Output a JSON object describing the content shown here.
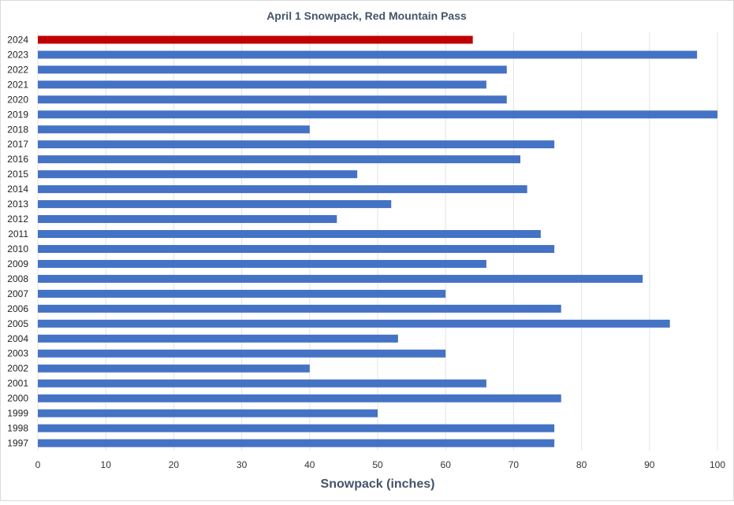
{
  "chart_data": {
    "type": "bar",
    "orientation": "horizontal",
    "title": "April 1 Snowpack, Red Mountain Pass",
    "xlabel": "Snowpack (inches)",
    "ylabel": "",
    "xlim": [
      0,
      100
    ],
    "xticks": [
      0,
      10,
      20,
      30,
      40,
      50,
      60,
      70,
      80,
      90,
      100
    ],
    "grid": true,
    "legend": "none",
    "categories": [
      "2024",
      "2023",
      "2022",
      "2021",
      "2020",
      "2019",
      "2018",
      "2017",
      "2016",
      "2015",
      "2014",
      "2013",
      "2012",
      "2011",
      "2010",
      "2009",
      "2008",
      "2007",
      "2006",
      "2005",
      "2004",
      "2003",
      "2002",
      "2001",
      "2000",
      "1999",
      "1998",
      "1997"
    ],
    "values": [
      64,
      97,
      69,
      66,
      69,
      100,
      40,
      76,
      71,
      47,
      72,
      52,
      44,
      74,
      76,
      66,
      89,
      60,
      77,
      93,
      53,
      60,
      40,
      66,
      77,
      50,
      76,
      76
    ],
    "colors": {
      "default": "#4472c4",
      "highlight": "#c00000"
    },
    "highlight_category": "2024"
  }
}
